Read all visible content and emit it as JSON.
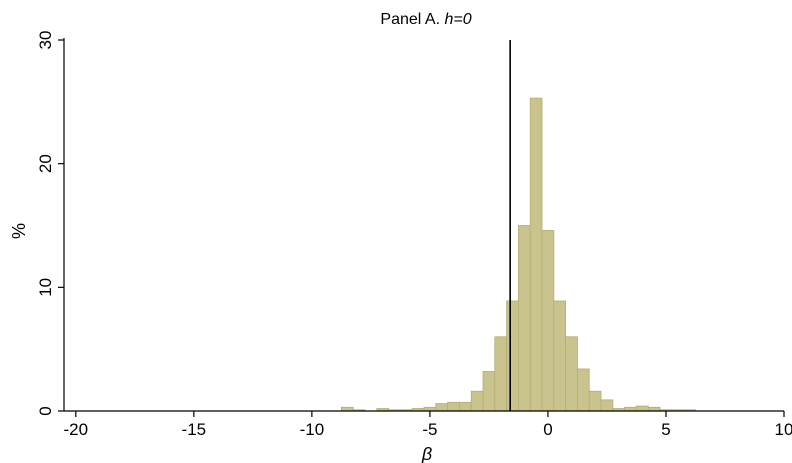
{
  "chart_data": {
    "type": "bar",
    "title_prefix": "Panel A. ",
    "title_italic": "h=0",
    "xlabel": "β",
    "ylabel": "%",
    "xlim": [
      -20.5,
      10
    ],
    "ylim": [
      0,
      30
    ],
    "xticks": [
      -20,
      -15,
      -10,
      -5,
      0,
      5,
      10
    ],
    "xtick_labels": [
      "-20",
      "-15",
      "-10",
      "-5",
      "0",
      "5",
      "10"
    ],
    "yticks": [
      0,
      10,
      20,
      30
    ],
    "ytick_labels": [
      "0",
      "10",
      "20",
      "30"
    ],
    "bin_width": 0.5,
    "bins": [
      {
        "x0": -8.75,
        "value": 0.3
      },
      {
        "x0": -8.25,
        "value": 0.1
      },
      {
        "x0": -7.25,
        "value": 0.2
      },
      {
        "x0": -6.75,
        "value": 0.1
      },
      {
        "x0": -6.25,
        "value": 0.1
      },
      {
        "x0": -5.75,
        "value": 0.2
      },
      {
        "x0": -5.25,
        "value": 0.3
      },
      {
        "x0": -4.75,
        "value": 0.6
      },
      {
        "x0": -4.25,
        "value": 0.7
      },
      {
        "x0": -3.75,
        "value": 0.7
      },
      {
        "x0": -3.25,
        "value": 1.6
      },
      {
        "x0": -2.75,
        "value": 3.2
      },
      {
        "x0": -2.25,
        "value": 6.0
      },
      {
        "x0": -1.75,
        "value": 8.9
      },
      {
        "x0": -1.25,
        "value": 15.0
      },
      {
        "x0": -0.75,
        "value": 25.3
      },
      {
        "x0": -0.25,
        "value": 14.6
      },
      {
        "x0": 0.25,
        "value": 8.9
      },
      {
        "x0": 0.75,
        "value": 6.0
      },
      {
        "x0": 1.25,
        "value": 3.4
      },
      {
        "x0": 1.75,
        "value": 1.6
      },
      {
        "x0": 2.25,
        "value": 0.9
      },
      {
        "x0": 2.75,
        "value": 0.2
      },
      {
        "x0": 3.25,
        "value": 0.3
      },
      {
        "x0": 3.75,
        "value": 0.4
      },
      {
        "x0": 4.25,
        "value": 0.3
      },
      {
        "x0": 4.75,
        "value": 0.1
      },
      {
        "x0": 5.25,
        "value": 0.1
      },
      {
        "x0": 5.75,
        "value": 0.1
      }
    ],
    "vline_x": -1.6,
    "bar_fill": "#c9c38d",
    "bar_stroke": "#b4ad72",
    "vline_color": "#000000",
    "grid": false
  }
}
